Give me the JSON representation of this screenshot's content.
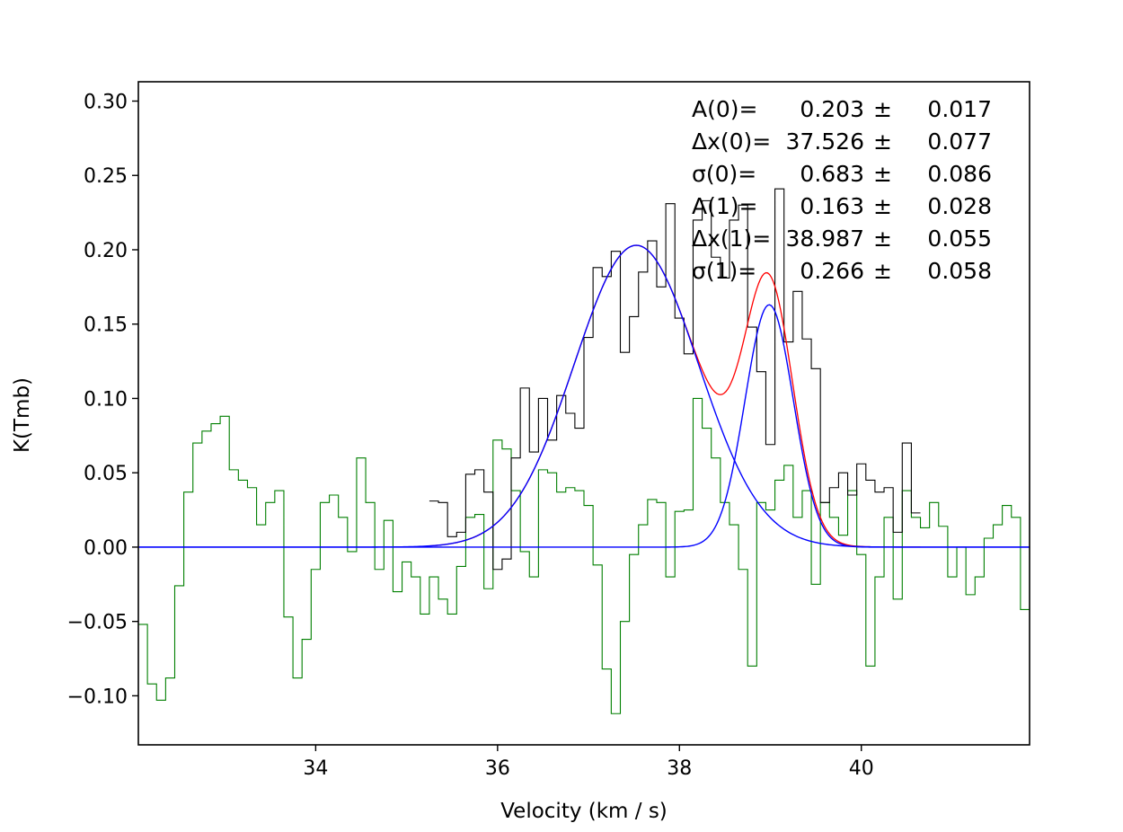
{
  "chart_data": {
    "type": "line",
    "title": "",
    "xlabel": "Velocity (km / s)",
    "ylabel": "K(Tmb)",
    "xlim": [
      32.05,
      41.85
    ],
    "ylim": [
      -0.133,
      0.313
    ],
    "grid": false,
    "x_ticks": [
      {
        "value": 34,
        "label": "34"
      },
      {
        "value": 36,
        "label": "36"
      },
      {
        "value": 38,
        "label": "38"
      },
      {
        "value": 40,
        "label": "40"
      }
    ],
    "y_ticks": [
      {
        "value": -0.1,
        "label": "−0.10"
      },
      {
        "value": -0.05,
        "label": "−0.05"
      },
      {
        "value": 0.0,
        "label": "0.00"
      },
      {
        "value": 0.05,
        "label": "0.05"
      },
      {
        "value": 0.1,
        "label": "0.10"
      },
      {
        "value": 0.15,
        "label": "0.15"
      },
      {
        "value": 0.2,
        "label": "0.20"
      },
      {
        "value": 0.25,
        "label": "0.25"
      },
      {
        "value": 0.3,
        "label": "0.30"
      }
    ],
    "fit_parameters": [
      {
        "label": "A(0)=",
        "value": "0.203",
        "pm": "±",
        "error": "0.017"
      },
      {
        "label": "Δx(0)=",
        "value": "37.526",
        "pm": "±",
        "error": "0.077"
      },
      {
        "label": "σ(0)=",
        "value": "0.683",
        "pm": "±",
        "error": "0.086"
      },
      {
        "label": "A(1)=",
        "value": "0.163",
        "pm": "±",
        "error": "0.028"
      },
      {
        "label": "Δx(1)=",
        "value": "38.987",
        "pm": "±",
        "error": "0.055"
      },
      {
        "label": "σ(1)=",
        "value": "0.266",
        "pm": "±",
        "error": "0.058"
      }
    ],
    "components": [
      {
        "amplitude": 0.203,
        "center": 37.526,
        "sigma": 0.683
      },
      {
        "amplitude": 0.163,
        "center": 38.987,
        "sigma": 0.266
      }
    ],
    "colors": {
      "spectrum": "#000000",
      "residual": "#007f00",
      "component": "#0000ff",
      "total_fit": "#ff0000",
      "axes": "#000000"
    },
    "spectrum": {
      "x_start": 35.25,
      "step": 0.1,
      "y": [
        0.031,
        0.03,
        0.007,
        0.01,
        0.049,
        0.052,
        0.037,
        -0.015,
        -0.008,
        0.06,
        0.107,
        0.064,
        0.1,
        0.072,
        0.102,
        0.09,
        0.08,
        0.141,
        0.188,
        0.182,
        0.199,
        0.131,
        0.155,
        0.185,
        0.206,
        0.175,
        0.231,
        0.154,
        0.13,
        0.22,
        0.233,
        0.195,
        0.181,
        0.22,
        0.23,
        0.148,
        0.118,
        0.069,
        0.241,
        0.138,
        0.172,
        0.14,
        0.12,
        0.03,
        0.04,
        0.05,
        0.035,
        0.056,
        0.045,
        0.037,
        0.04,
        0.01,
        0.07,
        0.023
      ]
    },
    "residual": {
      "x_start": 32.05,
      "step": 0.1,
      "y": [
        -0.052,
        -0.092,
        -0.103,
        -0.088,
        -0.026,
        0.037,
        0.07,
        0.078,
        0.083,
        0.088,
        0.052,
        0.045,
        0.04,
        0.015,
        0.03,
        0.038,
        -0.047,
        -0.088,
        -0.062,
        -0.015,
        0.03,
        0.035,
        0.02,
        -0.003,
        0.06,
        0.03,
        -0.015,
        0.018,
        -0.03,
        -0.01,
        -0.02,
        -0.045,
        -0.02,
        -0.035,
        -0.045,
        -0.013,
        0.02,
        0.022,
        -0.028,
        0.072,
        0.066,
        0.038,
        -0.003,
        -0.02,
        0.052,
        0.05,
        0.037,
        0.04,
        0.038,
        0.028,
        -0.012,
        -0.082,
        -0.112,
        -0.05,
        -0.005,
        0.015,
        0.032,
        0.03,
        -0.02,
        0.024,
        0.025,
        0.1,
        0.08,
        0.06,
        0.03,
        0.015,
        -0.015,
        -0.08,
        0.03,
        0.025,
        0.045,
        0.055,
        0.02,
        0.038,
        -0.025,
        0.03,
        0.02,
        0.008,
        0.038,
        -0.005,
        -0.08,
        -0.02,
        0.02,
        -0.035,
        0.038,
        0.02,
        0.013,
        0.03,
        0.014,
        -0.02,
        0.0,
        -0.032,
        -0.02,
        0.006,
        0.015,
        0.028,
        0.02,
        -0.042,
        0.03,
        0.035,
        0.023,
        -0.025,
        0.04,
        0.03,
        0.01,
        0.02,
        0.02,
        0.05,
        -0.05,
        0.03,
        0.035,
        0.02,
        0.02,
        0.015,
        -0.005,
        0.038,
        0.015,
        0.052,
        0.02,
        0.01,
        0.018,
        0.015,
        0.01,
        -0.01,
        -0.015,
        0.022,
        0.01,
        -0.02,
        0.03,
        -0.06,
        0.016,
        0.02,
        0.01,
        0.017,
        0.055,
        0.018,
        -0.01,
        0.0,
        -0.03,
        -0.01,
        0.0,
        0.01,
        -0.02,
        0.015,
        -0.04,
        -0.07,
        0.0,
        0.05,
        0.02,
        0.01,
        -0.02,
        -0.03,
        0.015,
        0.02,
        0.0,
        -0.03,
        -0.05,
        -0.04,
        -0.07
      ]
    }
  }
}
